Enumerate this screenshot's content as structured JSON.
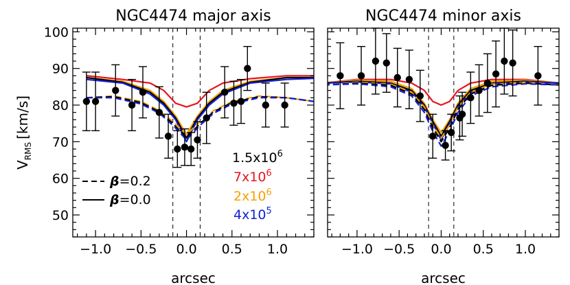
{
  "colors": {
    "black": "#000000",
    "red": "#e8141e",
    "orange": "#f5a000",
    "blue": "#1420d2"
  },
  "ylabel_main": "V",
  "ylabel_sub": "RMS",
  "ylabel_unit": "[km/s]",
  "legend_lines": [
    {
      "style": "dashed",
      "beta_symbol": "β",
      "text": "=0.2"
    },
    {
      "style": "solid",
      "beta_symbol": "β",
      "text": "=0.0"
    }
  ],
  "legend_masses": [
    {
      "base": "1.5x10",
      "exp": "6",
      "color": "#000000"
    },
    {
      "base": "7x10",
      "exp": "6",
      "color": "#e8141e"
    },
    {
      "base": "2x10",
      "exp": "6",
      "color": "#f5a000"
    },
    {
      "base": "4x10",
      "exp": "5",
      "color": "#1420d2"
    }
  ],
  "chart_data": [
    {
      "type": "line",
      "title": "NGC4474 major axis",
      "xlabel": "arcsec",
      "ylabel": "V_RMS [km/s]",
      "xlim": [
        -1.25,
        1.4
      ],
      "ylim": [
        44,
        101
      ],
      "xticks": [
        -1.0,
        -0.5,
        0.0,
        0.5,
        1.0
      ],
      "xtick_labels": [
        "−1.0",
        "−0.5",
        "0.0",
        "0.5",
        "1.0"
      ],
      "yticks": [
        50,
        60,
        70,
        80,
        90,
        100
      ],
      "ytick_labels": [
        "50",
        "60",
        "70",
        "80",
        "90",
        "100"
      ],
      "vlines": [
        -0.15,
        0.15
      ],
      "observations": {
        "x": [
          -1.1,
          -1.0,
          -0.78,
          -0.6,
          -0.48,
          -0.3,
          -0.2,
          -0.1,
          -0.02,
          0.05,
          0.12,
          0.22,
          0.42,
          0.52,
          0.6,
          0.67,
          0.87,
          1.08
        ],
        "y": [
          81,
          81,
          84,
          80,
          83.5,
          78,
          71.5,
          68,
          68.5,
          68,
          70.5,
          76.5,
          83.5,
          80.5,
          81,
          90,
          80,
          80
        ],
        "err": [
          8,
          8,
          7,
          7,
          7,
          7,
          6,
          5,
          5,
          4.5,
          5,
          7,
          7,
          6,
          6,
          6,
          6,
          6
        ]
      },
      "series": [
        {
          "color": "#e8141e",
          "style": "solid",
          "x": [
            -1.1,
            -0.7,
            -0.4,
            -0.25,
            -0.12,
            0.0,
            0.12,
            0.25,
            0.4,
            0.7,
            1.1,
            1.4
          ],
          "y": [
            88,
            87,
            86,
            84,
            80.5,
            79.5,
            80.5,
            84,
            86,
            87.2,
            88,
            88
          ]
        },
        {
          "color": "#f5a000",
          "style": "solid",
          "x": [
            -1.1,
            -0.7,
            -0.4,
            -0.25,
            -0.12,
            0.0,
            0.12,
            0.25,
            0.4,
            0.7,
            1.1,
            1.4
          ],
          "y": [
            87.5,
            86.5,
            84,
            81,
            77,
            72,
            77,
            81,
            84,
            86.5,
            87.5,
            87.5
          ]
        },
        {
          "color": "#000000",
          "style": "solid",
          "x": [
            -1.1,
            -0.7,
            -0.4,
            -0.25,
            -0.12,
            0.0,
            0.12,
            0.25,
            0.4,
            0.7,
            1.1,
            1.4
          ],
          "y": [
            87.5,
            86.2,
            83.5,
            80.5,
            76.5,
            71,
            76.5,
            80.5,
            83.5,
            86.2,
            87.5,
            87.5
          ]
        },
        {
          "color": "#1420d2",
          "style": "solid",
          "x": [
            -1.1,
            -0.7,
            -0.4,
            -0.25,
            -0.12,
            0.0,
            0.12,
            0.25,
            0.4,
            0.7,
            1.1,
            1.4
          ],
          "y": [
            87,
            86,
            83,
            80,
            76,
            70,
            76,
            80,
            83,
            86,
            87,
            87.3
          ]
        },
        {
          "color": "#f5a000",
          "style": "dashed",
          "x": [
            -1.1,
            -0.8,
            -0.5,
            -0.3,
            -0.15,
            0.0,
            0.15,
            0.3,
            0.5,
            0.8,
            1.1,
            1.4
          ],
          "y": [
            82,
            82.5,
            81,
            78.5,
            75.5,
            72,
            75.5,
            78.5,
            81,
            82.5,
            82,
            81
          ]
        },
        {
          "color": "#000000",
          "style": "dashed",
          "x": [
            -1.1,
            -0.8,
            -0.5,
            -0.3,
            -0.15,
            0.0,
            0.15,
            0.3,
            0.5,
            0.8,
            1.1,
            1.4
          ],
          "y": [
            82,
            82.3,
            80.7,
            78.2,
            75,
            71,
            75,
            78.2,
            80.7,
            82.3,
            82,
            81
          ]
        },
        {
          "color": "#1420d2",
          "style": "dashed",
          "x": [
            -1.1,
            -0.8,
            -0.5,
            -0.3,
            -0.15,
            0.0,
            0.15,
            0.3,
            0.5,
            0.8,
            1.1,
            1.4
          ],
          "y": [
            82,
            82,
            80.3,
            77.8,
            74.5,
            70.5,
            74.5,
            77.8,
            80.3,
            82,
            82,
            81
          ]
        }
      ]
    },
    {
      "type": "line",
      "title": "NGC4474 minor axis",
      "xlabel": "arcsec",
      "xlim": [
        -1.35,
        1.4
      ],
      "ylim": [
        44,
        101
      ],
      "xticks": [
        -1.0,
        -0.5,
        0.0,
        0.5,
        1.0
      ],
      "xtick_labels": [
        "−1.0",
        "−0.5",
        "0.0",
        "0.5",
        "1.0"
      ],
      "yticks": [
        50,
        60,
        70,
        80,
        90,
        100
      ],
      "vlines": [
        -0.15,
        0.15
      ],
      "observations": {
        "x": [
          -1.2,
          -0.95,
          -0.78,
          -0.65,
          -0.52,
          -0.38,
          -0.25,
          -0.1,
          0.05,
          0.12,
          0.22,
          0.25,
          0.35,
          0.45,
          0.55,
          0.65,
          0.75,
          0.85,
          1.15
        ],
        "y": [
          88,
          88,
          92,
          91.5,
          87.5,
          87,
          82.5,
          71.5,
          69,
          72.5,
          76.5,
          77.5,
          82,
          84,
          86,
          88.5,
          92,
          91.5,
          88
        ],
        "err": [
          9,
          8,
          9,
          8,
          8,
          8,
          7,
          6,
          4,
          5,
          6,
          6,
          7,
          7,
          8,
          9,
          9,
          9,
          8
        ]
      },
      "series": [
        {
          "color": "#e8141e",
          "style": "solid",
          "x": [
            -1.4,
            -1.0,
            -0.6,
            -0.35,
            -0.2,
            -0.1,
            0.0,
            0.1,
            0.2,
            0.35,
            0.6,
            1.0,
            1.4
          ],
          "y": [
            86,
            87,
            87,
            86,
            84,
            81,
            80,
            81,
            84,
            86,
            87,
            87,
            86
          ]
        },
        {
          "color": "#f5a000",
          "style": "solid",
          "x": [
            -1.4,
            -1.0,
            -0.6,
            -0.35,
            -0.2,
            -0.1,
            0.0,
            0.1,
            0.2,
            0.35,
            0.6,
            1.0,
            1.4
          ],
          "y": [
            86,
            86.8,
            86.5,
            84.5,
            80.5,
            76,
            72.5,
            76,
            80.5,
            84.5,
            86.5,
            86.8,
            86
          ]
        },
        {
          "color": "#000000",
          "style": "solid",
          "x": [
            -1.4,
            -1.0,
            -0.6,
            -0.35,
            -0.2,
            -0.1,
            0.0,
            0.1,
            0.2,
            0.35,
            0.6,
            1.0,
            1.4
          ],
          "y": [
            86,
            86.5,
            86,
            84,
            80,
            75.5,
            71.5,
            75.5,
            80,
            84,
            86,
            86.5,
            86
          ]
        },
        {
          "color": "#1420d2",
          "style": "solid",
          "x": [
            -1.4,
            -1.0,
            -0.6,
            -0.35,
            -0.2,
            -0.1,
            0.0,
            0.1,
            0.2,
            0.35,
            0.6,
            1.0,
            1.4
          ],
          "y": [
            86,
            86.3,
            85.8,
            83.5,
            79.5,
            75,
            70.5,
            75,
            79.5,
            83.5,
            85.8,
            86.3,
            86
          ]
        },
        {
          "color": "#f5a000",
          "style": "dashed",
          "x": [
            -1.4,
            -1.0,
            -0.6,
            -0.35,
            -0.2,
            -0.1,
            0.0,
            0.1,
            0.2,
            0.35,
            0.6,
            1.0,
            1.4
          ],
          "y": [
            85.5,
            86.2,
            85.7,
            83.5,
            79.5,
            74.5,
            71,
            74.5,
            79.5,
            83.5,
            85.7,
            86.2,
            85.5
          ]
        },
        {
          "color": "#000000",
          "style": "dashed",
          "x": [
            -1.4,
            -1.0,
            -0.6,
            -0.35,
            -0.2,
            -0.1,
            0.0,
            0.1,
            0.2,
            0.35,
            0.6,
            1.0,
            1.4
          ],
          "y": [
            85.5,
            86,
            85.4,
            83,
            78.8,
            73.8,
            70,
            73.8,
            78.8,
            83,
            85.4,
            86,
            85.5
          ]
        },
        {
          "color": "#1420d2",
          "style": "dashed",
          "x": [
            -1.4,
            -1.0,
            -0.6,
            -0.35,
            -0.2,
            -0.1,
            0.0,
            0.1,
            0.2,
            0.35,
            0.6,
            1.0,
            1.4
          ],
          "y": [
            85.5,
            85.8,
            85,
            82.5,
            78,
            72.8,
            68.8,
            72.8,
            78,
            82.5,
            85,
            85.8,
            85.5
          ]
        }
      ]
    }
  ]
}
